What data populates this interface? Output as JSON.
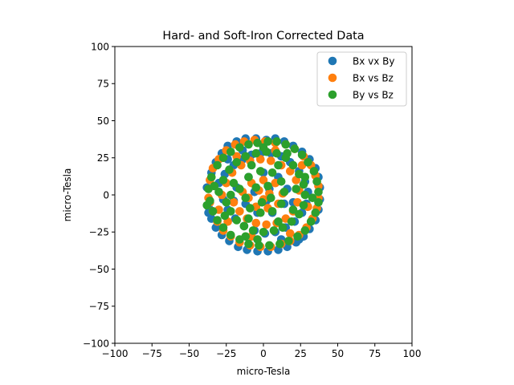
{
  "chart_data": {
    "type": "scatter",
    "title": "Hard- and Soft-Iron Corrected Data",
    "xlabel": "micro-Tesla",
    "ylabel": "micro-Tesla",
    "xlim": [
      -100,
      100
    ],
    "ylim": [
      -100,
      100
    ],
    "xticks": [
      -100,
      -75,
      -50,
      -25,
      0,
      25,
      50,
      75,
      100
    ],
    "yticks": [
      -100,
      -75,
      -50,
      -25,
      0,
      25,
      50,
      75,
      100
    ],
    "xtick_labels": [
      "−100",
      "−75",
      "−50",
      "−25",
      "0",
      "25",
      "50",
      "75",
      "100"
    ],
    "ytick_labels": [
      "−100",
      "−75",
      "−50",
      "−25",
      "0",
      "25",
      "50",
      "75",
      "100"
    ],
    "grid": false,
    "legend_position": "upper-right",
    "series": [
      {
        "name": "Bx vx By",
        "color": "#1f77b4",
        "points": [
          [
            -38,
            5
          ],
          [
            -37,
            -12
          ],
          [
            -35,
            15
          ],
          [
            -32,
            22
          ],
          [
            -28,
            28
          ],
          [
            -24,
            33
          ],
          [
            -18,
            36
          ],
          [
            -12,
            38
          ],
          [
            -5,
            38
          ],
          [
            2,
            37
          ],
          [
            8,
            38
          ],
          [
            14,
            36
          ],
          [
            20,
            33
          ],
          [
            26,
            29
          ],
          [
            31,
            24
          ],
          [
            35,
            18
          ],
          [
            37,
            12
          ],
          [
            38,
            5
          ],
          [
            38,
            -3
          ],
          [
            37,
            -10
          ],
          [
            35,
            -17
          ],
          [
            31,
            -23
          ],
          [
            27,
            -28
          ],
          [
            22,
            -32
          ],
          [
            16,
            -35
          ],
          [
            10,
            -37
          ],
          [
            3,
            -38
          ],
          [
            -4,
            -38
          ],
          [
            -11,
            -37
          ],
          [
            -17,
            -35
          ],
          [
            -23,
            -31
          ],
          [
            -28,
            -27
          ],
          [
            -32,
            -22
          ],
          [
            -35,
            -16
          ],
          [
            -37,
            -8
          ],
          [
            -30,
            8
          ],
          [
            -26,
            14
          ],
          [
            -20,
            20
          ],
          [
            -14,
            24
          ],
          [
            -8,
            27
          ],
          [
            -2,
            28
          ],
          [
            5,
            28
          ],
          [
            12,
            26
          ],
          [
            18,
            22
          ],
          [
            24,
            16
          ],
          [
            28,
            9
          ],
          [
            30,
            2
          ],
          [
            29,
            -6
          ],
          [
            26,
            -12
          ],
          [
            21,
            -18
          ],
          [
            15,
            -22
          ],
          [
            8,
            -25
          ],
          [
            1,
            -26
          ],
          [
            -6,
            -24
          ],
          [
            -13,
            -21
          ],
          [
            -19,
            -16
          ],
          [
            -24,
            -10
          ],
          [
            -27,
            -3
          ],
          [
            -18,
            5
          ],
          [
            -10,
            12
          ],
          [
            0,
            15
          ],
          [
            10,
            12
          ],
          [
            16,
            4
          ],
          [
            14,
            -6
          ],
          [
            6,
            -12
          ],
          [
            -4,
            -12
          ],
          [
            -12,
            -6
          ],
          [
            -6,
            2
          ],
          [
            4,
            4
          ],
          [
            2,
            -4
          ],
          [
            20,
            -5
          ],
          [
            -20,
            -4
          ],
          [
            12,
            -30
          ],
          [
            -14,
            30
          ],
          [
            24,
            -30
          ],
          [
            -24,
            24
          ]
        ]
      },
      {
        "name": "Bx vs Bz",
        "color": "#ff7f0e",
        "points": [
          [
            -37,
            -2
          ],
          [
            -36,
            10
          ],
          [
            -34,
            18
          ],
          [
            -30,
            24
          ],
          [
            -25,
            30
          ],
          [
            -19,
            34
          ],
          [
            -13,
            36
          ],
          [
            -6,
            37
          ],
          [
            1,
            36
          ],
          [
            8,
            35
          ],
          [
            15,
            34
          ],
          [
            21,
            31
          ],
          [
            27,
            26
          ],
          [
            32,
            20
          ],
          [
            35,
            13
          ],
          [
            37,
            6
          ],
          [
            37,
            -2
          ],
          [
            36,
            -9
          ],
          [
            33,
            -16
          ],
          [
            29,
            -22
          ],
          [
            24,
            -27
          ],
          [
            18,
            -31
          ],
          [
            12,
            -33
          ],
          [
            5,
            -35
          ],
          [
            -2,
            -35
          ],
          [
            -9,
            -34
          ],
          [
            -16,
            -32
          ],
          [
            -22,
            -28
          ],
          [
            -27,
            -24
          ],
          [
            -31,
            -18
          ],
          [
            -34,
            -11
          ],
          [
            -36,
            -5
          ],
          [
            -28,
            0
          ],
          [
            -25,
            8
          ],
          [
            -21,
            15
          ],
          [
            -15,
            20
          ],
          [
            -9,
            23
          ],
          [
            -2,
            24
          ],
          [
            5,
            23
          ],
          [
            12,
            20
          ],
          [
            18,
            16
          ],
          [
            22,
            10
          ],
          [
            24,
            3
          ],
          [
            23,
            -5
          ],
          [
            20,
            -11
          ],
          [
            15,
            -16
          ],
          [
            9,
            -19
          ],
          [
            2,
            -20
          ],
          [
            -5,
            -19
          ],
          [
            -11,
            -16
          ],
          [
            -16,
            -11
          ],
          [
            -20,
            -5
          ],
          [
            -14,
            2
          ],
          [
            -8,
            8
          ],
          [
            0,
            10
          ],
          [
            8,
            8
          ],
          [
            13,
            1
          ],
          [
            10,
            -6
          ],
          [
            3,
            -9
          ],
          [
            -5,
            -8
          ],
          [
            -10,
            -2
          ],
          [
            -3,
            3
          ],
          [
            4,
            1
          ],
          [
            0,
            -3
          ],
          [
            30,
            -8
          ],
          [
            -30,
            -10
          ],
          [
            18,
            -26
          ],
          [
            -18,
            26
          ],
          [
            26,
            20
          ],
          [
            -24,
            -18
          ],
          [
            8,
            30
          ],
          [
            -8,
            -28
          ]
        ]
      },
      {
        "name": "By vs Bz",
        "color": "#2ca02c",
        "points": [
          [
            -38,
            -7
          ],
          [
            -37,
            4
          ],
          [
            -35,
            12
          ],
          [
            -31,
            20
          ],
          [
            -27,
            25
          ],
          [
            -22,
            29
          ],
          [
            -16,
            32
          ],
          [
            -10,
            34
          ],
          [
            -4,
            35
          ],
          [
            3,
            36
          ],
          [
            9,
            36
          ],
          [
            15,
            34
          ],
          [
            21,
            31
          ],
          [
            26,
            27
          ],
          [
            30,
            22
          ],
          [
            34,
            16
          ],
          [
            36,
            9
          ],
          [
            37,
            2
          ],
          [
            37,
            -5
          ],
          [
            35,
            -12
          ],
          [
            32,
            -18
          ],
          [
            28,
            -24
          ],
          [
            23,
            -28
          ],
          [
            17,
            -31
          ],
          [
            11,
            -33
          ],
          [
            4,
            -34
          ],
          [
            -3,
            -34
          ],
          [
            -10,
            -33
          ],
          [
            -16,
            -30
          ],
          [
            -22,
            -27
          ],
          [
            -27,
            -22
          ],
          [
            -31,
            -17
          ],
          [
            -34,
            -11
          ],
          [
            -36,
            -4
          ],
          [
            -30,
            2
          ],
          [
            -27,
            10
          ],
          [
            -23,
            17
          ],
          [
            -18,
            22
          ],
          [
            -12,
            26
          ],
          [
            -5,
            28
          ],
          [
            2,
            29
          ],
          [
            9,
            28
          ],
          [
            15,
            25
          ],
          [
            20,
            20
          ],
          [
            24,
            14
          ],
          [
            27,
            7
          ],
          [
            28,
            0
          ],
          [
            27,
            -7
          ],
          [
            24,
            -13
          ],
          [
            19,
            -18
          ],
          [
            13,
            -22
          ],
          [
            7,
            -24
          ],
          [
            0,
            -25
          ],
          [
            -7,
            -24
          ],
          [
            -13,
            -21
          ],
          [
            -18,
            -17
          ],
          [
            -22,
            -11
          ],
          [
            -25,
            -5
          ],
          [
            -16,
            4
          ],
          [
            -10,
            12
          ],
          [
            -2,
            16
          ],
          [
            6,
            15
          ],
          [
            12,
            9
          ],
          [
            14,
            2
          ],
          [
            12,
            -6
          ],
          [
            6,
            -11
          ],
          [
            -2,
            -12
          ],
          [
            -9,
            -9
          ],
          [
            -12,
            -2
          ],
          [
            -5,
            5
          ],
          [
            3,
            6
          ],
          [
            5,
            -2
          ],
          [
            -1,
            -5
          ],
          [
            -20,
            8
          ],
          [
            20,
            -10
          ],
          [
            -8,
            20
          ],
          [
            10,
            -18
          ],
          [
            -26,
            -14
          ],
          [
            28,
            12
          ],
          [
            -12,
            -28
          ],
          [
            16,
            28
          ],
          [
            -33,
            6
          ],
          [
            33,
            -2
          ],
          [
            0,
            32
          ],
          [
            -4,
            -30
          ],
          [
            22,
            4
          ],
          [
            -22,
            0
          ],
          [
            10,
            20
          ],
          [
            -10,
            -16
          ]
        ]
      }
    ]
  }
}
